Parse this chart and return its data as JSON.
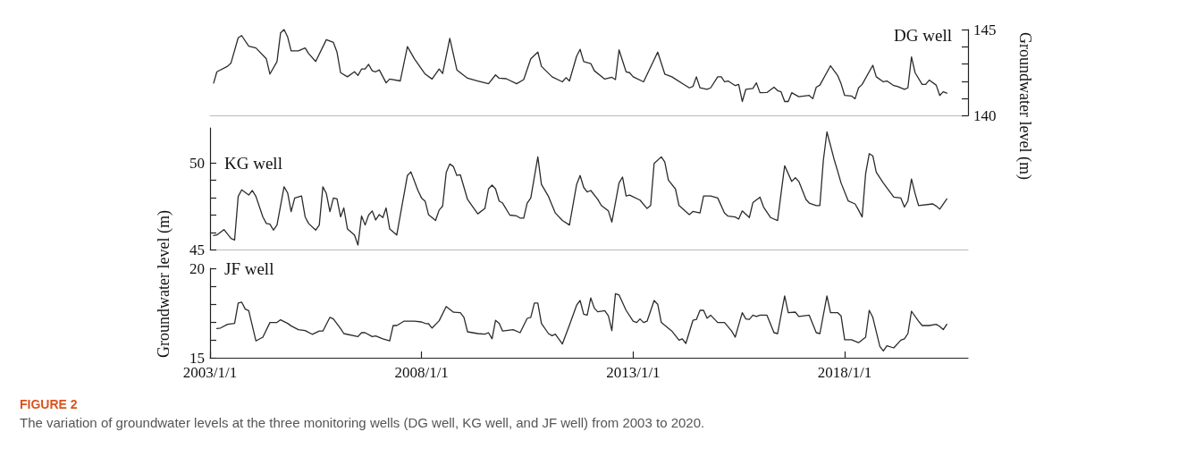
{
  "chart_data": [
    {
      "type": "line",
      "marker": "none",
      "tick_labels": "y",
      "xlim": [
        "2003-01",
        "2020-12"
      ],
      "y2lim": [
        140,
        145
      ],
      "y2ticks": [
        140,
        {
          "value": 141,
          "label": null
        },
        {
          "value": 142,
          "label": null
        },
        {
          "value": 143,
          "label": null
        },
        {
          "value": 144,
          "label": null
        },
        145
      ],
      "y2label": "Groundwater level (m)",
      "series": [
        {
          "name": "DG well",
          "color": "#2b2b2b",
          "axis": "y2",
          "x": [
            "2003-02",
            "2003-03",
            "2003-06",
            "2003-07",
            "2003-09",
            "2003-10",
            "2003-12",
            "2004-02",
            "2004-05",
            "2004-06",
            "2004-08",
            "2004-09",
            "2004-10",
            "2004-11",
            "2004-12",
            "2005-02",
            "2005-04",
            "2005-05",
            "2005-07",
            "2005-10",
            "2005-12",
            "2006-01",
            "2006-02",
            "2006-04",
            "2006-06",
            "2006-07",
            "2006-08",
            "2006-09",
            "2006-10",
            "2006-11",
            "2006-12",
            "2007-01",
            "2007-03",
            "2007-04",
            "2007-07",
            "2007-09",
            "2007-11",
            "2008-02",
            "2008-04",
            "2008-06",
            "2008-07",
            "2008-09",
            "2008-11",
            "2009-02",
            "2009-05",
            "2009-08",
            "2009-10",
            "2009-11",
            "2010-01",
            "2010-04",
            "2010-06",
            "2010-08",
            "2010-10",
            "2010-11",
            "2011-02",
            "2011-05",
            "2011-06",
            "2011-07",
            "2011-09",
            "2011-10",
            "2011-11",
            "2012-01",
            "2012-02",
            "2012-05",
            "2012-07",
            "2012-08",
            "2012-09",
            "2012-11",
            "2012-12",
            "2013-01",
            "2013-04",
            "2013-08",
            "2013-10",
            "2013-12",
            "2014-05",
            "2014-06",
            "2014-07",
            "2014-08",
            "2014-10",
            "2014-11",
            "2015-01",
            "2015-02",
            "2015-03",
            "2015-04",
            "2015-06",
            "2015-07",
            "2015-08",
            "2015-09",
            "2015-11",
            "2015-12",
            "2016-01",
            "2016-03",
            "2016-05",
            "2016-06",
            "2016-07",
            "2016-08",
            "2016-09",
            "2016-10",
            "2016-12",
            "2017-03",
            "2017-04",
            "2017-05",
            "2017-06",
            "2017-09",
            "2017-11",
            "2017-12",
            "2018-01",
            "2018-03",
            "2018-04",
            "2018-05",
            "2018-06",
            "2018-09",
            "2018-10",
            "2018-12",
            "2019-01",
            "2019-03",
            "2019-04",
            "2019-06",
            "2019-07",
            "2019-08",
            "2019-09",
            "2019-11",
            "2019-12",
            "2020-01",
            "2020-03",
            "2020-04",
            "2020-05",
            "2020-06"
          ],
          "values": [
            141.9,
            142.55,
            142.87,
            143.06,
            144.52,
            144.65,
            144.04,
            143.93,
            143.3,
            142.42,
            143.14,
            144.81,
            145.0,
            144.57,
            143.76,
            143.76,
            143.93,
            143.61,
            143.15,
            144.41,
            144.25,
            143.69,
            142.5,
            142.26,
            142.55,
            142.34,
            142.71,
            142.71,
            142.98,
            142.61,
            142.55,
            142.66,
            141.91,
            142.13,
            142.02,
            144.01,
            143.3,
            142.42,
            142.13,
            142.71,
            142.45,
            144.49,
            142.66,
            142.18,
            142.02,
            141.86,
            142.37,
            142.18,
            142.15,
            141.86,
            142.1,
            143.3,
            143.69,
            142.87,
            142.26,
            141.97,
            142.21,
            142.02,
            143.46,
            143.85,
            143.14,
            143.03,
            142.61,
            142.13,
            142.23,
            142.1,
            143.82,
            142.55,
            142.5,
            142.26,
            141.97,
            143.69,
            142.42,
            142.26,
            141.62,
            141.7,
            142.26,
            141.62,
            141.54,
            141.62,
            142.26,
            142.26,
            141.97,
            142.02,
            141.75,
            141.82,
            140.83,
            141.54,
            141.59,
            141.91,
            141.34,
            141.35,
            141.66,
            141.46,
            141.39,
            140.83,
            140.83,
            141.34,
            141.11,
            141.18,
            140.99,
            141.66,
            141.78,
            142.9,
            142.34,
            141.86,
            141.18,
            141.15,
            140.99,
            141.62,
            141.82,
            142.93,
            142.26,
            141.97,
            142.02,
            141.75,
            141.7,
            141.54,
            141.62,
            143.41,
            142.5,
            141.82,
            141.82,
            142.07,
            141.78,
            141.18,
            141.39,
            141.31
          ]
        }
      ]
    },
    {
      "type": "line",
      "marker": "none",
      "tick_labels": "y",
      "xlim": [
        "2003-01",
        "2020-12"
      ],
      "ylim": [
        45,
        52
      ],
      "yticks": [
        45,
        {
          "value": 46,
          "label": null
        },
        {
          "value": 47,
          "label": null
        },
        {
          "value": 48,
          "label": null
        },
        {
          "value": 49,
          "label": null
        },
        50
      ],
      "ylabel": "Groundwater level (m)",
      "series": [
        {
          "name": "KG well",
          "color": "#2b2b2b",
          "x": [
            "2003-02",
            "2003-03",
            "2003-05",
            "2003-07",
            "2003-08",
            "2003-09",
            "2003-10",
            "2003-12",
            "2004-01",
            "2004-02",
            "2004-04",
            "2004-05",
            "2004-06",
            "2004-07",
            "2004-08",
            "2004-10",
            "2004-11",
            "2004-12",
            "2005-01",
            "2005-03",
            "2005-04",
            "2005-05",
            "2005-07",
            "2005-08",
            "2005-09",
            "2005-10",
            "2005-11",
            "2005-12",
            "2006-01",
            "2006-02",
            "2006-03",
            "2006-04",
            "2006-06",
            "2006-07",
            "2006-08",
            "2006-09",
            "2006-10",
            "2006-11",
            "2006-12",
            "2007-01",
            "2007-02",
            "2007-03",
            "2007-04",
            "2007-06",
            "2007-09",
            "2007-10",
            "2007-12",
            "2008-01",
            "2008-02",
            "2008-03",
            "2008-05",
            "2008-06",
            "2008-07",
            "2008-08",
            "2008-09",
            "2008-10",
            "2008-11",
            "2008-12",
            "2009-02",
            "2009-03",
            "2009-05",
            "2009-07",
            "2009-08",
            "2009-09",
            "2009-10",
            "2009-11",
            "2009-12",
            "2010-02",
            "2010-04",
            "2010-05",
            "2010-06",
            "2010-07",
            "2010-08",
            "2010-10",
            "2010-11",
            "2011-01",
            "2011-03",
            "2011-05",
            "2011-07",
            "2011-09",
            "2011-10",
            "2011-11",
            "2011-12",
            "2012-01",
            "2012-03",
            "2012-04",
            "2012-06",
            "2012-07",
            "2012-09",
            "2012-10",
            "2012-11",
            "2012-12",
            "2013-03",
            "2013-05",
            "2013-06",
            "2013-07",
            "2013-09",
            "2013-10",
            "2013-11",
            "2014-01",
            "2014-02",
            "2014-05",
            "2014-06",
            "2014-08",
            "2014-09",
            "2014-11",
            "2015-01",
            "2015-03",
            "2015-04",
            "2015-06",
            "2015-07",
            "2015-08",
            "2015-10",
            "2015-11",
            "2016-01",
            "2016-02",
            "2016-04",
            "2016-06",
            "2016-07",
            "2016-08",
            "2016-10",
            "2016-11",
            "2016-12",
            "2017-02",
            "2017-03",
            "2017-05",
            "2017-06",
            "2017-07",
            "2017-08",
            "2017-10",
            "2017-11",
            "2017-12",
            "2018-02",
            "2018-04",
            "2018-05",
            "2018-06",
            "2018-07",
            "2018-08",
            "2018-09",
            "2018-10",
            "2018-12",
            "2019-03",
            "2019-05",
            "2019-06",
            "2019-07",
            "2019-08",
            "2019-09",
            "2019-10",
            "2020-02",
            "2020-03",
            "2020-04",
            "2020-06"
          ],
          "values": [
            45.83,
            45.86,
            46.17,
            45.66,
            45.57,
            48.07,
            48.45,
            48.15,
            48.41,
            48.07,
            46.9,
            46.52,
            46.48,
            46.14,
            46.43,
            48.62,
            48.27,
            47.2,
            47.98,
            48.1,
            46.9,
            46.52,
            46.14,
            46.43,
            48.62,
            48.24,
            47.2,
            47.98,
            47.93,
            46.9,
            47.41,
            46.21,
            45.86,
            45.28,
            46.95,
            46.43,
            47.0,
            47.24,
            46.72,
            47.03,
            46.86,
            47.41,
            46.21,
            45.86,
            49.27,
            49.48,
            48.41,
            47.98,
            47.8,
            47.03,
            46.69,
            47.29,
            47.51,
            49.45,
            49.93,
            49.79,
            49.27,
            49.31,
            47.9,
            47.64,
            47.07,
            47.38,
            48.5,
            48.72,
            48.5,
            47.81,
            47.69,
            47.0,
            46.95,
            46.83,
            46.83,
            47.69,
            47.98,
            50.34,
            48.76,
            48.07,
            47.12,
            46.69,
            46.43,
            48.76,
            49.27,
            48.59,
            48.33,
            48.41,
            47.9,
            47.55,
            47.24,
            46.6,
            48.84,
            49.18,
            48.1,
            48.15,
            47.86,
            47.38,
            47.55,
            49.96,
            50.34,
            50.05,
            49.01,
            48.5,
            47.55,
            47.03,
            47.21,
            47.12,
            48.1,
            48.1,
            47.98,
            47.12,
            46.94,
            46.89,
            46.77,
            47.24,
            46.86,
            47.72,
            48.03,
            47.46,
            46.86,
            46.69,
            48.24,
            49.83,
            48.93,
            49.14,
            48.93,
            47.9,
            47.69,
            47.55,
            47.55,
            50.14,
            51.77,
            50.22,
            49.53,
            48.84,
            47.81,
            47.64,
            47.29,
            46.89,
            49.36,
            50.52,
            50.4,
            49.45,
            48.84,
            48.03,
            47.98,
            47.46,
            47.81,
            49.07,
            48.24,
            47.55,
            47.64,
            47.52,
            47.34,
            47.93
          ]
        }
      ]
    },
    {
      "type": "line",
      "marker": "none",
      "xlim": [
        "2003-01",
        "2020-12"
      ],
      "xticks": [
        {
          "value": "2003-01-01",
          "label": "2003/1/1"
        },
        {
          "value": "2008-01-01",
          "label": "2008/1/1"
        },
        {
          "value": "2013-01-01",
          "label": "2013/1/1"
        },
        {
          "value": "2018-01-01",
          "label": "2018/1/1"
        }
      ],
      "ylim": [
        15,
        20
      ],
      "yticks": [
        15,
        {
          "value": 16,
          "label": null
        },
        {
          "value": 17,
          "label": null
        },
        {
          "value": 18,
          "label": null
        },
        {
          "value": 19,
          "label": null
        },
        20
      ],
      "annotations": [
        "FIGURE 2",
        "The variation of groundwater levels at the three monitoring wells (DG well, KG well, and JF well) from 2003 to 2020."
      ],
      "series": [
        {
          "name": "JF well",
          "color": "#2b2b2b",
          "x": [
            "2003-03",
            "2003-04",
            "2003-06",
            "2003-08",
            "2003-09",
            "2003-10",
            "2003-11",
            "2003-12",
            "2004-02",
            "2004-04",
            "2004-06",
            "2004-08",
            "2004-09",
            "2004-11",
            "2004-12",
            "2005-02",
            "2005-04",
            "2005-06",
            "2005-08",
            "2005-09",
            "2005-11",
            "2005-12",
            "2006-02",
            "2006-03",
            "2006-07",
            "2006-08",
            "2006-09",
            "2006-11",
            "2006-12",
            "2007-02",
            "2007-04",
            "2007-05",
            "2007-06",
            "2007-08",
            "2007-11",
            "2008-01",
            "2008-02",
            "2008-03",
            "2008-04",
            "2008-06",
            "2008-08",
            "2008-10",
            "2008-12",
            "2009-01",
            "2009-02",
            "2009-05",
            "2009-07",
            "2009-08",
            "2009-09",
            "2009-10",
            "2009-11",
            "2009-12",
            "2010-01",
            "2010-03",
            "2010-05",
            "2010-07",
            "2010-08",
            "2010-09",
            "2010-10",
            "2010-11",
            "2011-01",
            "2011-02",
            "2011-03",
            "2011-05",
            "2011-07",
            "2011-09",
            "2011-10",
            "2011-11",
            "2011-12",
            "2012-01",
            "2012-02",
            "2012-03",
            "2012-05",
            "2012-06",
            "2012-07",
            "2012-08",
            "2012-09",
            "2012-11",
            "2013-01",
            "2013-02",
            "2013-03",
            "2013-04",
            "2013-05",
            "2013-07",
            "2013-08",
            "2013-09",
            "2013-12",
            "2014-02",
            "2014-03",
            "2014-04",
            "2014-06",
            "2014-07",
            "2014-08",
            "2014-09",
            "2014-10",
            "2014-11",
            "2015-01",
            "2015-03",
            "2015-05",
            "2015-06",
            "2015-07",
            "2015-08",
            "2015-09",
            "2015-10",
            "2015-11",
            "2015-12",
            "2016-01",
            "2016-03",
            "2016-05",
            "2016-06",
            "2016-08",
            "2016-09",
            "2016-11",
            "2016-12",
            "2017-03",
            "2017-05",
            "2017-06",
            "2017-08",
            "2017-09",
            "2017-11",
            "2017-12",
            "2018-01",
            "2018-03",
            "2018-05",
            "2018-07",
            "2018-08",
            "2018-09",
            "2018-11",
            "2018-12",
            "2019-01",
            "2019-03",
            "2019-05",
            "2019-06",
            "2019-07",
            "2019-08",
            "2019-10",
            "2019-11",
            "2020-01",
            "2020-03",
            "2020-04",
            "2020-05",
            "2020-06"
          ],
          "values": [
            16.63,
            16.66,
            16.87,
            16.92,
            18.06,
            18.11,
            17.72,
            17.63,
            15.94,
            16.15,
            16.97,
            16.97,
            17.12,
            16.92,
            16.78,
            16.57,
            16.52,
            16.31,
            16.49,
            16.49,
            17.26,
            17.17,
            16.63,
            16.35,
            16.18,
            16.4,
            16.4,
            16.18,
            16.22,
            16.06,
            15.94,
            16.8,
            16.8,
            17.04,
            17.04,
            17.0,
            16.92,
            16.9,
            16.66,
            17.07,
            17.86,
            17.55,
            17.52,
            17.26,
            16.45,
            16.35,
            16.32,
            16.4,
            16.06,
            17.09,
            16.92,
            16.49,
            16.52,
            16.57,
            16.4,
            17.2,
            17.26,
            18.06,
            18.06,
            16.92,
            16.35,
            16.23,
            16.32,
            15.77,
            16.83,
            17.94,
            18.2,
            17.43,
            17.38,
            18.34,
            17.77,
            17.57,
            17.63,
            17.34,
            16.52,
            18.58,
            18.51,
            17.65,
            17.04,
            16.97,
            17.17,
            16.97,
            17.04,
            18.2,
            17.99,
            16.97,
            16.49,
            15.98,
            16.06,
            15.8,
            17.09,
            17.14,
            17.65,
            17.65,
            17.21,
            17.38,
            16.97,
            16.97,
            16.49,
            16.15,
            16.83,
            17.52,
            17.17,
            17.14,
            17.38,
            17.31,
            17.38,
            17.38,
            16.4,
            16.35,
            18.46,
            17.52,
            17.55,
            17.31,
            17.38,
            16.4,
            16.35,
            18.46,
            17.52,
            17.52,
            17.34,
            16.01,
            16.01,
            15.84,
            16.15,
            17.65,
            17.26,
            15.63,
            15.38,
            15.67,
            15.55,
            15.98,
            16.06,
            16.35,
            17.6,
            17.04,
            16.8,
            16.8,
            16.87,
            16.75,
            16.57,
            16.87
          ]
        }
      ]
    }
  ]
}
